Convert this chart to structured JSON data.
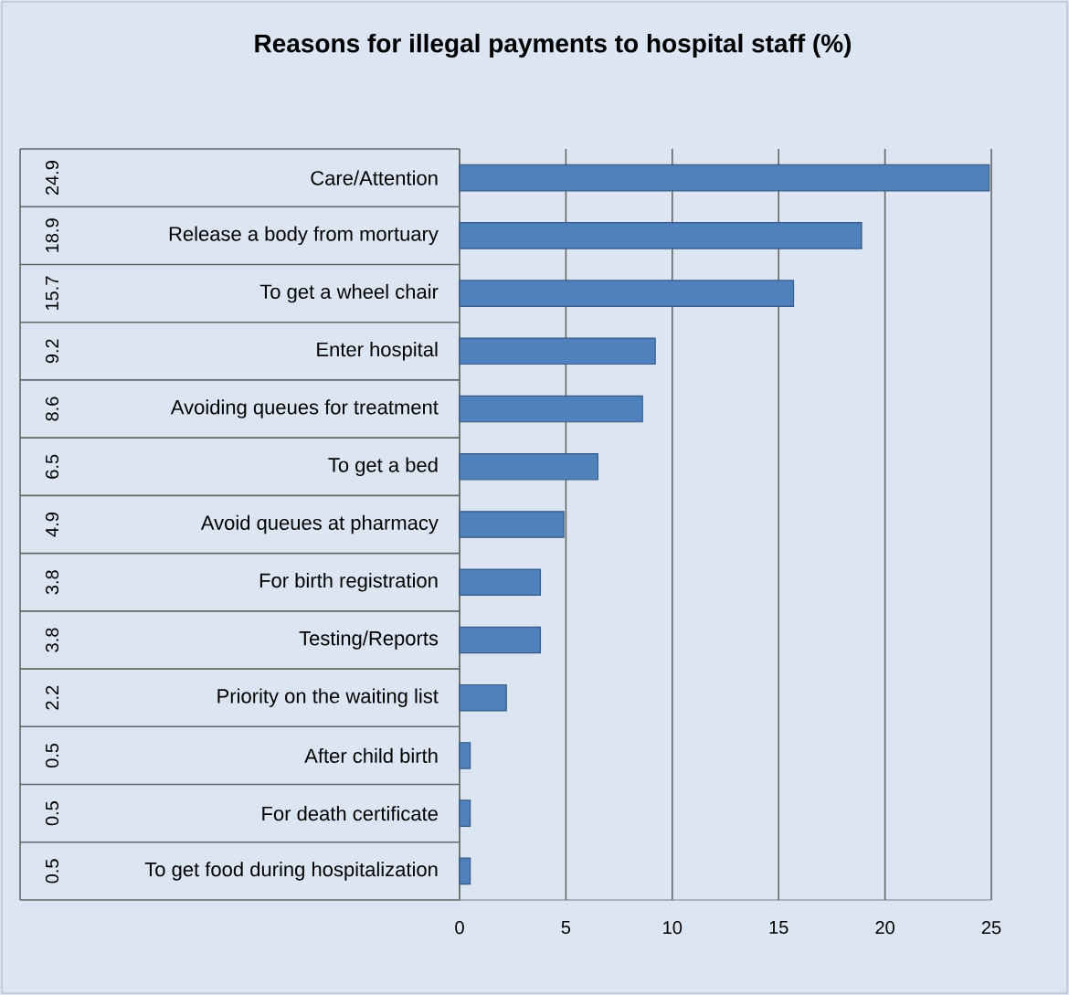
{
  "chart_data": {
    "type": "bar",
    "orientation": "horizontal",
    "title": "Reasons for illegal payments to hospital staff (%)",
    "categories": [
      "Care/Attention",
      "Release a body from mortuary",
      "To get a wheel chair",
      "Enter hospital",
      "Avoiding queues for treatment",
      "To get a bed",
      "Avoid queues at pharmacy",
      "For birth registration",
      "Testing/Reports",
      "Priority on the waiting list",
      "After child birth",
      "For death certificate",
      "To get food during hospitalization"
    ],
    "values": [
      24.9,
      18.9,
      15.7,
      9.2,
      8.6,
      6.5,
      4.9,
      3.8,
      3.8,
      2.2,
      0.5,
      0.5,
      0.5
    ],
    "color": "#4f81bd",
    "xlim": [
      0,
      25
    ],
    "xticks": [
      0,
      5,
      10,
      15,
      20,
      25
    ],
    "grid": "x",
    "data_labels": true
  }
}
